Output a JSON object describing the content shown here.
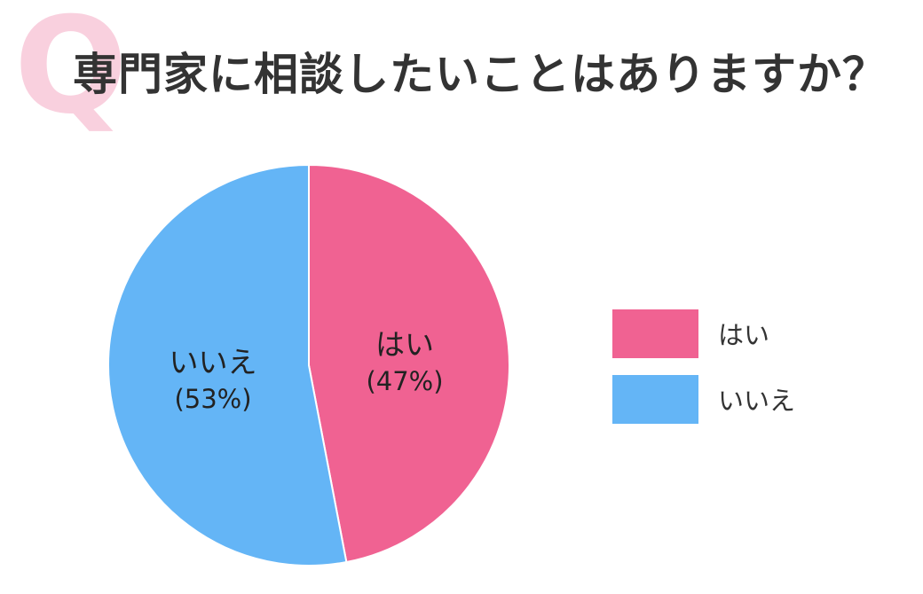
{
  "title": "専門家に相談したいことはありますか？",
  "q_mark": "Q",
  "colors": {
    "yes": "#f06292",
    "no": "#64b5f6",
    "title": "#333333",
    "q": "#f9d0de"
  },
  "chart_data": {
    "type": "pie",
    "title": "専門家に相談したいことはありますか？",
    "slices": [
      {
        "label": "はい",
        "value": 47,
        "value_label": "(47%)",
        "color": "#f06292"
      },
      {
        "label": "いいえ",
        "value": 53,
        "value_label": "(53%)",
        "color": "#64b5f6"
      }
    ],
    "legend": [
      {
        "label": "はい",
        "color": "#f06292"
      },
      {
        "label": "いいえ",
        "color": "#64b5f6"
      }
    ],
    "legend_position": "right"
  }
}
